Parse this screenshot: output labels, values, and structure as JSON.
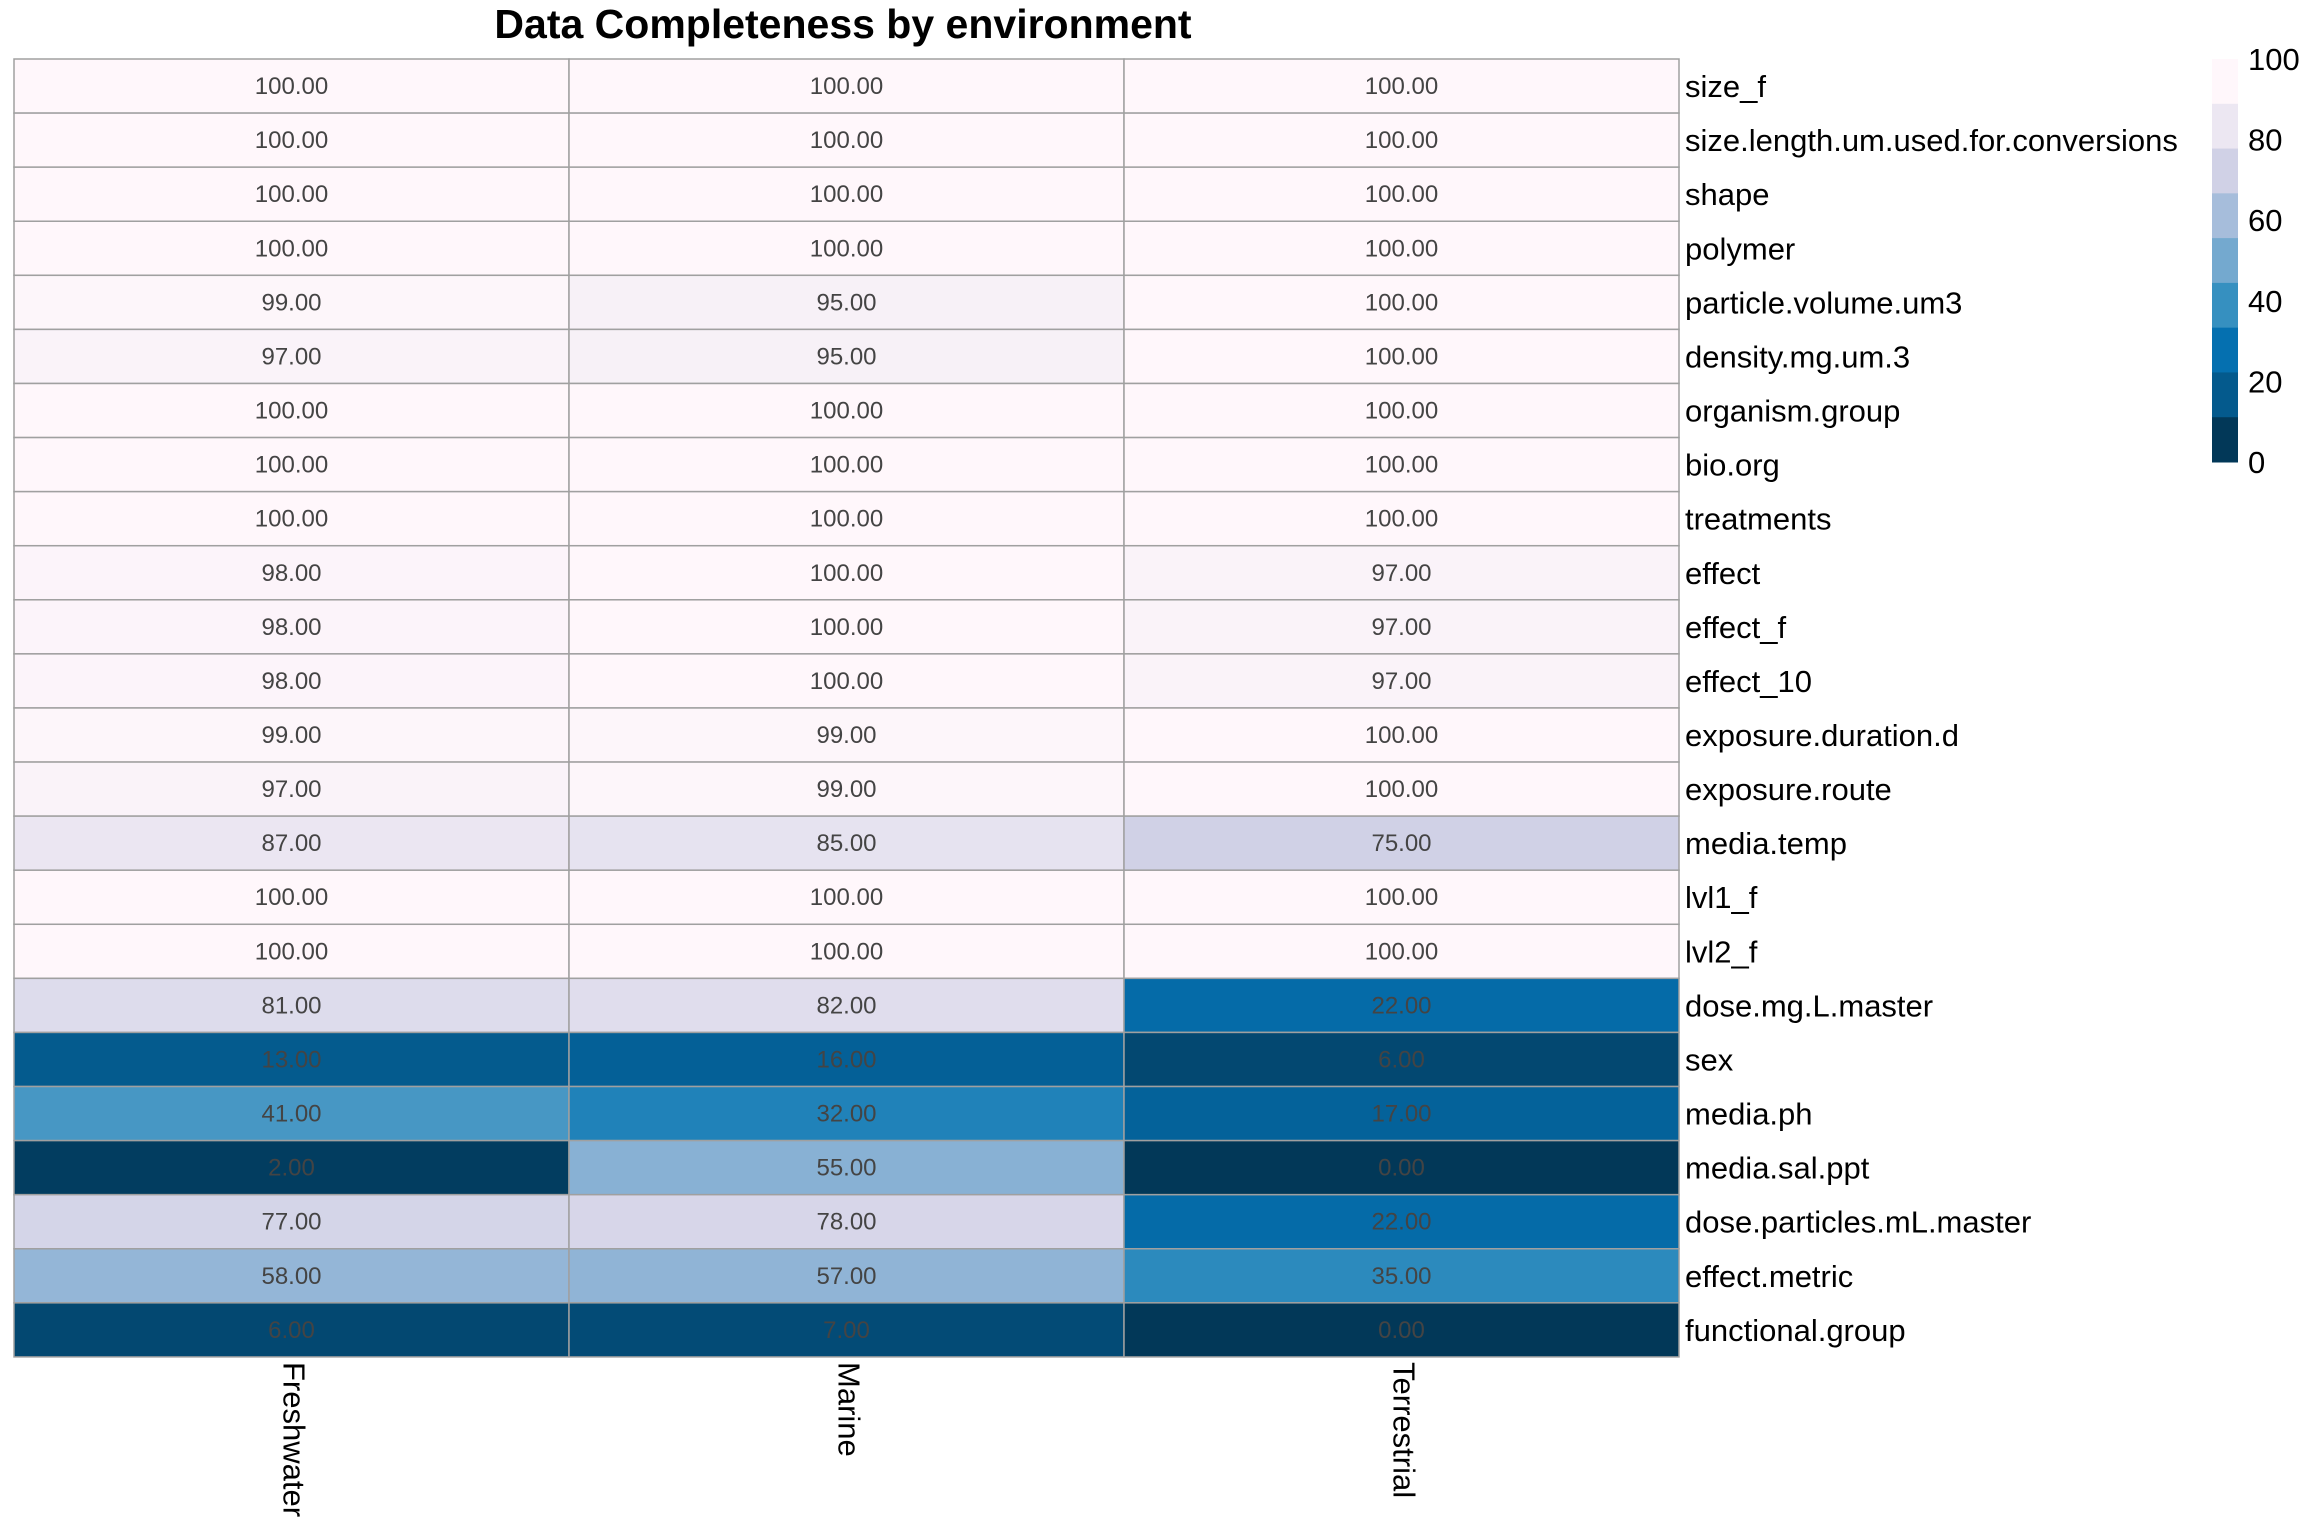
{
  "chart_data": {
    "type": "heatmap",
    "title": "Data Completeness by environment",
    "columns": [
      "Freshwater",
      "Marine",
      "Terrestrial"
    ],
    "rows": [
      "size_f",
      "size.length.um.used.for.conversions",
      "shape",
      "polymer",
      "particle.volume.um3",
      "density.mg.um.3",
      "organism.group",
      "bio.org",
      "treatments",
      "effect",
      "effect_f",
      "effect_10",
      "exposure.duration.d",
      "exposure.route",
      "media.temp",
      "lvl1_f",
      "lvl2_f",
      "dose.mg.L.master",
      "sex",
      "media.ph",
      "media.sal.ppt",
      "dose.particles.mL.master",
      "effect.metric",
      "functional.group"
    ],
    "values": [
      [
        100,
        100,
        100
      ],
      [
        100,
        100,
        100
      ],
      [
        100,
        100,
        100
      ],
      [
        100,
        100,
        100
      ],
      [
        99,
        95,
        100
      ],
      [
        97,
        95,
        100
      ],
      [
        100,
        100,
        100
      ],
      [
        100,
        100,
        100
      ],
      [
        100,
        100,
        100
      ],
      [
        98,
        100,
        97
      ],
      [
        98,
        100,
        97
      ],
      [
        98,
        100,
        97
      ],
      [
        99,
        99,
        100
      ],
      [
        97,
        99,
        100
      ],
      [
        87,
        85,
        75
      ],
      [
        100,
        100,
        100
      ],
      [
        100,
        100,
        100
      ],
      [
        81,
        82,
        22
      ],
      [
        13,
        16,
        6
      ],
      [
        41,
        32,
        17
      ],
      [
        2,
        55,
        0
      ],
      [
        77,
        78,
        22
      ],
      [
        58,
        57,
        35
      ],
      [
        6,
        7,
        0
      ]
    ],
    "value_format": "2 decimals",
    "legend": {
      "position": "top-right",
      "ticks": [
        100,
        80,
        60,
        40,
        20,
        0
      ],
      "range": [
        0,
        100
      ],
      "colors": [
        "#023858",
        "#045a8d",
        "#0570b0",
        "#3690c0",
        "#74a9cf",
        "#a6bddb",
        "#d0d1e6",
        "#ece7f2",
        "#fff7fb"
      ]
    },
    "colors": {
      "grid_line": "#a0a0a0",
      "cell_text": "#444444"
    }
  }
}
